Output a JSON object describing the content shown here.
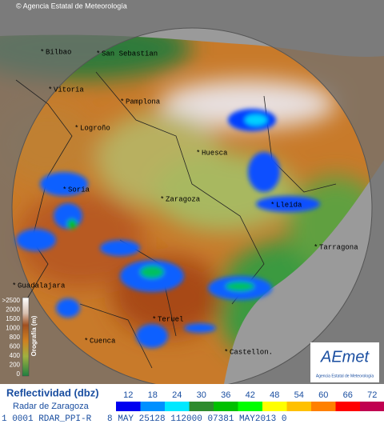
{
  "header": {
    "credit": "© Agencia Estatal de Meteorología"
  },
  "cities": [
    {
      "label": "Bilbao"
    },
    {
      "label": "San Sebastian"
    },
    {
      "label": "Vitoria"
    },
    {
      "label": "Pamplona"
    },
    {
      "label": "Logroño"
    },
    {
      "label": "Huesca"
    },
    {
      "label": "Soria"
    },
    {
      "label": "Zaragoza"
    },
    {
      "label": "Lleida"
    },
    {
      "label": "Tarragona"
    },
    {
      "label": "Guadalajara"
    },
    {
      "label": "Teruel"
    },
    {
      "label": "Cuenca"
    },
    {
      "label": "Castellon."
    }
  ],
  "orography": {
    "title": "Orografía (m)",
    "labels": [
      ">2500",
      "2000",
      "1500",
      "1000",
      "800",
      "600",
      "400",
      "200",
      "0"
    ]
  },
  "logo": {
    "name": "AEmet",
    "subtitle": "Agencia Estatal de Meteorología"
  },
  "reflectivity": {
    "title": "Reflectividad (dbz)",
    "radar": "Radar de Zaragoza",
    "labels": [
      "12",
      "18",
      "24",
      "30",
      "36",
      "42",
      "48",
      "54",
      "60",
      "66",
      "72"
    ],
    "colors": [
      "#0000f0",
      "#0090ff",
      "#00e8ff",
      "#2e8b2e",
      "#00c000",
      "#00ff00",
      "#ffff00",
      "#ffc000",
      "#ff8000",
      "#ff0000",
      "#c00050"
    ]
  },
  "status": {
    "text": "1 0001 RDAR_PPI-R   8 MAY 25128 112000 07381 MAY2013 0"
  }
}
